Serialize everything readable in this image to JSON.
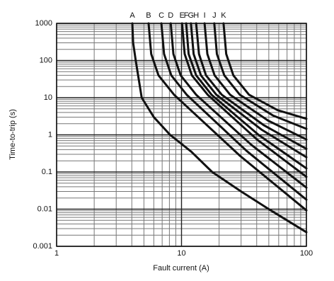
{
  "chart_data": {
    "type": "line",
    "xlabel": "Fault current (A)",
    "ylabel": "Time-to-trip (s)",
    "xlog": true,
    "ylog": true,
    "grid": true,
    "minor_grid": true,
    "xlim": [
      1,
      100
    ],
    "ylim": [
      0.001,
      1000
    ],
    "xticks": [
      1,
      10,
      100
    ],
    "yticks": [
      0.001,
      0.01,
      0.1,
      1,
      10,
      100,
      1000
    ],
    "series": [
      {
        "name": "A",
        "color": "#111111",
        "x": [
          4.04,
          4.1,
          4.3,
          4.8,
          6,
          8.1,
          12,
          17.6,
          30,
          50,
          100
        ],
        "values": [
          1000,
          300,
          100,
          10,
          3,
          1,
          0.35,
          0.1,
          0.03,
          0.01,
          0.0024
        ]
      },
      {
        "name": "B",
        "color": "#111111",
        "x": [
          5.45,
          5.72,
          6.54,
          8.72,
          29.5,
          100
        ],
        "values": [
          1000,
          150,
          40,
          12,
          0.27,
          0.0093
        ]
      },
      {
        "name": "C",
        "color": "#111111",
        "x": [
          6.9,
          7.25,
          8.28,
          11.0,
          33.2,
          100
        ],
        "values": [
          1000,
          150,
          40,
          12,
          0.37,
          0.018
        ]
      },
      {
        "name": "D",
        "color": "#111111",
        "x": [
          8.2,
          8.61,
          9.84,
          13.1,
          36.2,
          100
        ],
        "values": [
          1000,
          150,
          40,
          12,
          0.54,
          0.038
        ]
      },
      {
        "name": "E",
        "color": "#111111",
        "x": [
          10.1,
          10.6,
          12.1,
          16.2,
          40.2,
          100
        ],
        "values": [
          1000,
          150,
          40,
          12,
          0.75,
          0.074
        ]
      },
      {
        "name": "F",
        "color": "#111111",
        "x": [
          10.9,
          11.4,
          13.1,
          17.4,
          41.7,
          100
        ],
        "values": [
          1000,
          150,
          40,
          12,
          0.98,
          0.125
        ]
      },
      {
        "name": "G",
        "color": "#111111",
        "x": [
          11.9,
          12.5,
          14.3,
          19.0,
          43.6,
          100
        ],
        "values": [
          1000,
          150,
          40,
          12,
          1.39,
          0.25
        ]
      },
      {
        "name": "H",
        "color": "#111111",
        "x": [
          13.1,
          13.8,
          15.7,
          21.0,
          45.8,
          100
        ],
        "values": [
          1000,
          150,
          40,
          12,
          1.8,
          0.42
        ]
      },
      {
        "name": "I",
        "color": "#111111",
        "x": [
          15.3,
          16.1,
          18.4,
          24.5,
          49.5,
          100
        ],
        "values": [
          1000,
          150,
          40,
          12,
          2.4,
          0.75
        ]
      },
      {
        "name": "J",
        "color": "#111111",
        "x": [
          18.3,
          19.2,
          22.0,
          29.3,
          54.1,
          100
        ],
        "values": [
          1000,
          150,
          40,
          12,
          3.3,
          1.45
        ]
      },
      {
        "name": "K",
        "color": "#111111",
        "x": [
          21.7,
          22.8,
          26.0,
          34.7,
          58.9,
          100
        ],
        "values": [
          1000,
          150,
          40,
          12,
          4.6,
          2.7
        ]
      }
    ]
  }
}
